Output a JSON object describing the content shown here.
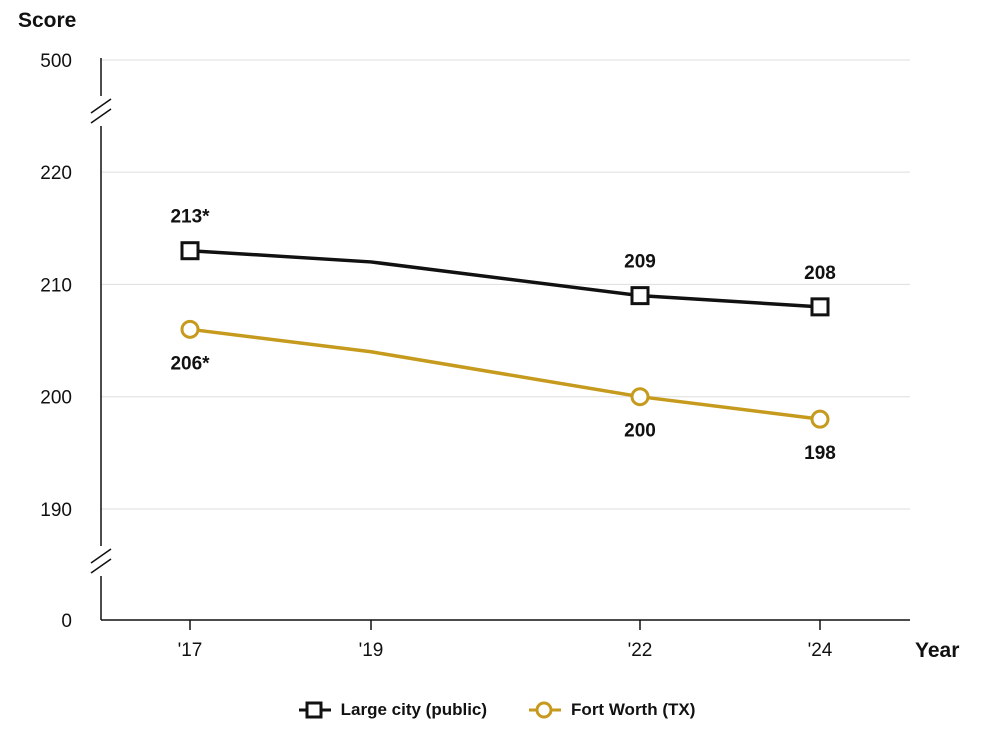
{
  "chart_data": {
    "type": "line",
    "ylabel": "Score",
    "xlabel": "Year",
    "categories": [
      "'17",
      "'19",
      "'22",
      "'24"
    ],
    "x": [
      2017,
      2019,
      2022,
      2024
    ],
    "y_ticks": [
      0,
      190,
      200,
      210,
      220,
      500
    ],
    "axis_breaks": [
      "between 0 and 190",
      "between 220 and 500"
    ],
    "grid": true,
    "legend_position": "bottom",
    "series": [
      {
        "name": "Large city (public)",
        "color": "#111111",
        "marker": "square",
        "values": [
          213,
          212,
          209,
          208
        ],
        "labels": [
          "213*",
          "",
          "209",
          "208"
        ]
      },
      {
        "name": "Fort Worth (TX)",
        "color": "#c69a1d",
        "marker": "circle",
        "values": [
          206,
          204,
          200,
          198
        ],
        "labels": [
          "206*",
          "",
          "200",
          "198"
        ]
      }
    ]
  }
}
